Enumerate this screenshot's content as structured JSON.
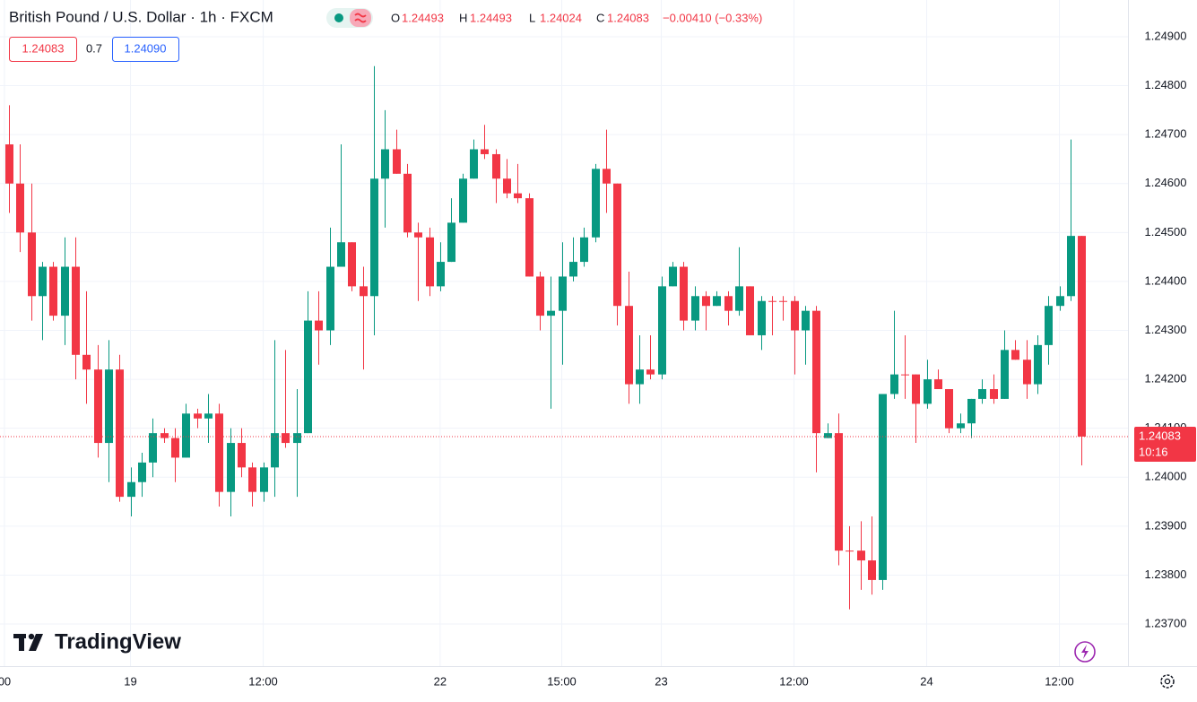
{
  "header": {
    "symbol": "British Pound / U.S. Dollar · 1h · FXCM",
    "ohlc_keys": [
      "O",
      "H",
      "L",
      "C"
    ],
    "change": "−0.00410 (−0.33%)",
    "spread": 0.7,
    "ask": "1.24090",
    "countdown": "10:16"
  },
  "watermark": "TradingView",
  "chart_data": {
    "type": "candlestick",
    "up_color": "#089981",
    "down_color": "#f23645",
    "grid": true,
    "ylim": [
      1.23614,
      1.24975
    ],
    "yticks": [
      {
        "value": 1.237,
        "label": "1.23700"
      },
      {
        "value": 1.238,
        "label": "1.23800"
      },
      {
        "value": 1.239,
        "label": "1.23900"
      },
      {
        "value": 1.24,
        "label": "1.24000"
      },
      {
        "value": 1.241,
        "label": "1.24100"
      },
      {
        "value": 1.242,
        "label": "1.24200"
      },
      {
        "value": 1.243,
        "label": "1.24300"
      },
      {
        "value": 1.244,
        "label": "1.24400"
      },
      {
        "value": 1.245,
        "label": "1.24500"
      },
      {
        "value": 1.246,
        "label": "1.24600"
      },
      {
        "value": 1.247,
        "label": "1.24700"
      },
      {
        "value": 1.248,
        "label": "1.24800"
      },
      {
        "value": 1.249,
        "label": "1.24900"
      }
    ],
    "xlim": [
      -0.8,
      101.2
    ],
    "xticks": [
      {
        "value": -0.4,
        "label": "00"
      },
      {
        "value": 11,
        "label": "19"
      },
      {
        "value": 23,
        "label": "12:00"
      },
      {
        "value": 39,
        "label": "22"
      },
      {
        "value": 50,
        "label": "15:00"
      },
      {
        "value": 59,
        "label": "23"
      },
      {
        "value": 71,
        "label": "12:00"
      },
      {
        "value": 83,
        "label": "24"
      },
      {
        "value": 95,
        "label": "12:00"
      }
    ],
    "open": [
      1.2468,
      1.246,
      1.245,
      1.2437,
      1.2443,
      1.2433,
      1.2443,
      1.2425,
      1.2422,
      1.2407,
      1.2422,
      1.2396,
      1.2399,
      1.2403,
      1.2409,
      1.2408,
      1.2404,
      1.2413,
      1.2412,
      1.2413,
      1.2397,
      1.2407,
      1.2402,
      1.2397,
      1.2402,
      1.2409,
      1.2407,
      1.2409,
      1.2432,
      1.243,
      1.2443,
      1.2448,
      1.2439,
      1.2437,
      1.2461,
      1.2467,
      1.2462,
      1.245,
      1.2449,
      1.2439,
      1.2444,
      1.2452,
      1.2461,
      1.2467,
      1.2466,
      1.2461,
      1.2458,
      1.2457,
      1.2441,
      1.2433,
      1.2434,
      1.2441,
      1.2444,
      1.2449,
      1.2463,
      1.246,
      1.2435,
      1.2419,
      1.2422,
      1.2421,
      1.2439,
      1.2443,
      1.2432,
      1.2437,
      1.2435,
      1.2437,
      1.2434,
      1.2439,
      1.2429,
      1.2436,
      1.2436,
      1.2436,
      1.243,
      1.2434,
      1.2408,
      1.2409,
      1.2385,
      1.2385,
      1.2383,
      1.2379,
      1.2417,
      1.2421,
      1.2421,
      1.2415,
      1.242,
      1.2418,
      1.241,
      1.2411,
      1.2416,
      1.2418,
      1.2416,
      1.2426,
      1.2424,
      1.2419,
      1.2427,
      1.2435,
      1.2437,
      1.24493
    ],
    "high": [
      1.2476,
      1.2468,
      1.246,
      1.2444,
      1.2444,
      1.2449,
      1.2449,
      1.2438,
      1.2427,
      1.2428,
      1.2425,
      1.2402,
      1.2405,
      1.2412,
      1.241,
      1.241,
      1.2415,
      1.2414,
      1.2417,
      1.2415,
      1.241,
      1.241,
      1.2403,
      1.2403,
      1.2428,
      1.2426,
      1.2418,
      1.2438,
      1.2438,
      1.2451,
      1.2468,
      1.2448,
      1.2443,
      1.2484,
      1.2475,
      1.2471,
      1.2464,
      1.2452,
      1.2451,
      1.2448,
      1.2457,
      1.2462,
      1.2469,
      1.2472,
      1.2467,
      1.2465,
      1.2464,
      1.2458,
      1.2442,
      1.2441,
      1.2448,
      1.2449,
      1.2451,
      1.2464,
      1.2471,
      1.246,
      1.2442,
      1.2429,
      1.2429,
      1.2441,
      1.2444,
      1.2444,
      1.2439,
      1.2438,
      1.2438,
      1.2438,
      1.2447,
      1.2439,
      1.2437,
      1.2437,
      1.2437,
      1.2437,
      1.2435,
      1.2435,
      1.2411,
      1.2413,
      1.239,
      1.2391,
      1.2392,
      1.2417,
      1.2434,
      1.2429,
      1.2421,
      1.2424,
      1.2422,
      1.2418,
      1.2413,
      1.2416,
      1.242,
      1.2421,
      1.243,
      1.2428,
      1.2428,
      1.2429,
      1.2437,
      1.2439,
      1.2469,
      1.24493
    ],
    "low": [
      1.2454,
      1.2446,
      1.2432,
      1.2428,
      1.2432,
      1.2427,
      1.242,
      1.2415,
      1.2404,
      1.2399,
      1.2395,
      1.2392,
      1.2396,
      1.24,
      1.2407,
      1.2399,
      1.2404,
      1.241,
      1.2407,
      1.2394,
      1.2392,
      1.24,
      1.2394,
      1.2395,
      1.2396,
      1.2406,
      1.2396,
      1.2409,
      1.2423,
      1.2427,
      1.2443,
      1.2438,
      1.2422,
      1.2429,
      1.2451,
      1.2462,
      1.2449,
      1.2436,
      1.2437,
      1.2438,
      1.2444,
      1.2452,
      1.2461,
      1.2465,
      1.2456,
      1.2457,
      1.2456,
      1.2441,
      1.243,
      1.2414,
      1.2423,
      1.244,
      1.2443,
      1.2448,
      1.2454,
      1.2431,
      1.2415,
      1.2415,
      1.242,
      1.242,
      1.2439,
      1.243,
      1.243,
      1.243,
      1.2435,
      1.2431,
      1.2433,
      1.2429,
      1.2426,
      1.2429,
      1.2432,
      1.2421,
      1.2423,
      1.2401,
      1.2408,
      1.2382,
      1.2373,
      1.2377,
      1.2376,
      1.2377,
      1.2416,
      1.2416,
      1.2407,
      1.2414,
      1.2418,
      1.2409,
      1.2409,
      1.2408,
      1.2415,
      1.2415,
      1.2416,
      1.2424,
      1.2416,
      1.2417,
      1.2423,
      1.2434,
      1.2436,
      1.24024
    ],
    "close": [
      1.246,
      1.245,
      1.2437,
      1.2443,
      1.2433,
      1.2443,
      1.2425,
      1.2422,
      1.2407,
      1.2422,
      1.2396,
      1.2399,
      1.2403,
      1.2409,
      1.2408,
      1.2404,
      1.2413,
      1.2412,
      1.2413,
      1.2397,
      1.2407,
      1.2402,
      1.2397,
      1.2402,
      1.2409,
      1.2407,
      1.2409,
      1.2432,
      1.243,
      1.2443,
      1.2448,
      1.2439,
      1.2437,
      1.2461,
      1.2467,
      1.2462,
      1.245,
      1.2449,
      1.2439,
      1.2444,
      1.2452,
      1.2461,
      1.2467,
      1.2466,
      1.2461,
      1.2458,
      1.2457,
      1.2441,
      1.2433,
      1.2434,
      1.2441,
      1.2444,
      1.2449,
      1.2463,
      1.246,
      1.2435,
      1.2419,
      1.2422,
      1.2421,
      1.2439,
      1.2443,
      1.2432,
      1.2437,
      1.2435,
      1.2437,
      1.2434,
      1.2439,
      1.2429,
      1.2436,
      1.2436,
      1.2436,
      1.243,
      1.2434,
      1.2409,
      1.2409,
      1.2385,
      1.2385,
      1.2383,
      1.2379,
      1.2417,
      1.2421,
      1.2421,
      1.2415,
      1.242,
      1.2418,
      1.241,
      1.2411,
      1.2416,
      1.2418,
      1.2416,
      1.2426,
      1.2424,
      1.2419,
      1.2427,
      1.2435,
      1.2437,
      1.24493,
      1.24083
    ]
  }
}
